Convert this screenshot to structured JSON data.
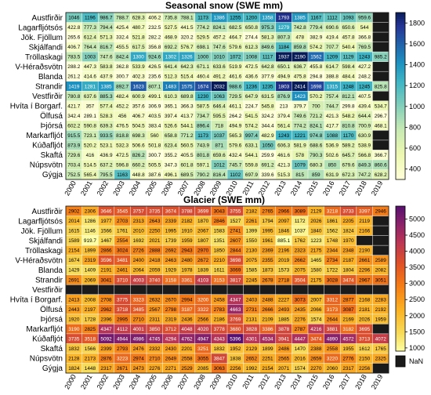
{
  "chart_data": [
    {
      "type": "heatmap",
      "title": "Seasonal snow (SWE mm)",
      "x": [
        "2000",
        "2001",
        "2002",
        "2003",
        "2004",
        "2005",
        "2006",
        "2007",
        "2008",
        "2009",
        "2010",
        "2011",
        "2012",
        "2013",
        "2014",
        "2015",
        "2016",
        "2017",
        "2018",
        "2019"
      ],
      "y": [
        "Austfirðir",
        "Lagarfljótsós",
        "Jök. Fjöllum",
        "Skjálfandi",
        "Tröllaskagi",
        "V-Héraðsvötn",
        "Blanda",
        "Strandir",
        "Vestfirðir",
        "Hvíta í Borgarf.",
        "Ölfusá",
        "Þjórsá",
        "Markarfljót",
        "Kúðafljót",
        "Skaftá",
        "Núpsvötn",
        "Gýgja"
      ],
      "values": [
        [
          1046,
          1196,
          986.7,
          788.7,
          628.3,
          406.2,
          735.8,
          788.1,
          1173,
          1386,
          1255,
          1200,
          1358,
          1793,
          1385,
          1167,
          1112,
          1093,
          959.6,
          null
        ],
        [
          422.8,
          777.3,
          794.4,
          425.4,
          480.7,
          232.5,
          527.5,
          441.5,
          774.2,
          824.1,
          682.5,
          650.8,
          975.3,
          1279,
          742.8,
          779.4,
          690.6,
          650.6,
          544,
          null
        ],
        [
          265.6,
          612.4,
          571.3,
          332.4,
          521.8,
          282.2,
          468.9,
          320.2,
          529.5,
          457.2,
          464.7,
          274.4,
          581.3,
          807.3,
          478,
          382.9,
          419.4,
          457.8,
          366.8,
          null
        ],
        [
          406.7,
          764.4,
          816.7,
          455.5,
          617.5,
          356.8,
          692.2,
          576.7,
          698.1,
          747.6,
          579.6,
          612.3,
          849.6,
          1184,
          859.8,
          574.2,
          707.7,
          540.4,
          769.5,
          null
        ],
        [
          783.5,
          1003,
          747.6,
          842.4,
          1300,
          924.6,
          1302,
          1326,
          1000,
          1010,
          1072,
          1008,
          1117,
          1937,
          2190,
          1562,
          1209,
          1129,
          1243,
          985.2
        ],
        [
          288.2,
          447.3,
          583.8,
          362.8,
          533.9,
          426.5,
          641.4,
          642.3,
          671.1,
          633.6,
          519.9,
          472.5,
          642.8,
          650.1,
          636.7,
          455.8,
          614.7,
          598.4,
          427.2,
          null
        ],
        [
          261.2,
          414.6,
          437.9,
          300.7,
          402.3,
          235.6,
          512.3,
          515.4,
          460.4,
          491.2,
          461.6,
          436.6,
          377.9,
          494.9,
          475.8,
          294.8,
          388.8,
          484.4,
          248.2,
          null
        ],
        [
          1419,
          1281,
          1385,
          892.7,
          1623,
          807.1,
          1483,
          1575,
          1674,
          2032,
          988.6,
          1236,
          1235,
          1803,
          2414,
          1698,
          1315,
          1248,
          1245,
          825.8
        ],
        [
          780.8,
          637.6,
          885.3,
          482.4,
          600.9,
          499.1,
          610.3,
          689.8,
          1230,
          1063,
          729.5,
          647.9,
          631.5,
          876.9,
          1423,
          570.2,
          757.4,
          812.1,
          407.5,
          null
        ],
        [
          421.7,
          357,
          577.4,
          452.2,
          357.6,
          306.9,
          365.1,
          366.3,
          587.5,
          646.4,
          461.1,
          224.7,
          545.8,
          213,
          379.7,
          700,
          744.7,
          299.8,
          439.4,
          534.7
        ],
        [
          342.4,
          289.1,
          528.3,
          456,
          406.7,
          403.5,
          397.4,
          413.7,
          734.7,
          595.5,
          264.2,
          541.5,
          324.2,
          379.4,
          749.6,
          721.2,
          421.3,
          548.2,
          644.4,
          296.7
        ],
        [
          602.2,
          590.8,
          639.3,
          476.5,
          504.5,
          383.4,
          526.6,
          544.1,
          896.4,
          718,
          494.9,
          574.2,
          344.4,
          561.4,
          774.2,
          824.1,
          417.7,
          810.8,
          700.9,
          468.1
        ],
        [
          915.5,
          723.1,
          933.5,
          818.8,
          698.3,
          560,
          658.8,
          771.2,
          1173,
          1037,
          565.3,
          997.4,
          482.9,
          1243,
          1221,
          974.8,
          1088,
          1170,
          630.9,
          null
        ],
        [
          873.9,
          520.2,
          523.1,
          532.3,
          506.6,
          501.8,
          623.4,
          560.5,
          743.9,
          871,
          579.6,
          633.1,
          1050,
          606.3,
          581.9,
          688.6,
          536.9,
          589.2,
          538.9,
          null
        ],
        [
          729.6,
          416,
          436.9,
          472.5,
          826.2,
          300.7,
          355.2,
          405.5,
          801.8,
          659.6,
          432.4,
          544.1,
          259.9,
          461.6,
          578,
          790.3,
          502.6,
          645.7,
          566.8,
          366.7
        ],
        [
          703.4,
          514.5,
          637.2,
          596.8,
          660.2,
          505.5,
          347.3,
          601.8,
          597.1,
          1012,
          745.7,
          559.8,
          691.2,
          421.3,
          1079,
          680.3,
          850,
          679.6,
          849.3,
          860.6
        ],
        [
          752.5,
          565.4,
          795.5,
          1163,
          448.8,
          387.6,
          496.1,
          689.5,
          790.2,
          816.4,
          1102,
          697.9,
          339.6,
          515.3,
          815,
          859,
          631.9,
          672.3,
          747.2,
          628.2
        ]
      ],
      "colorbar": {
        "ticks": [
          400,
          600,
          800,
          1000,
          1200,
          1400,
          1600,
          1800
        ],
        "range": [
          300,
          1900
        ],
        "colormap": "YlGnBu"
      }
    },
    {
      "type": "heatmap",
      "title": "Glacier (SWE mm)",
      "x": [
        "2000",
        "2001",
        "2002",
        "2003",
        "2004",
        "2005",
        "2006",
        "2007",
        "2008",
        "2009",
        "2010",
        "2011",
        "2012",
        "2013",
        "2014",
        "2015",
        "2016",
        "2017",
        "2018",
        "2019"
      ],
      "y": [
        "Austfirðir",
        "Lagarfljótsós",
        "Jök. Fjöllum",
        "Skjálfandi",
        "Tröllaskagi",
        "V-Héraðsvötn",
        "Blanda",
        "Strandir",
        "Vestfirðir",
        "Hvíta í Borgarf.",
        "Ölfusá",
        "Þjórsá",
        "Markarfljót",
        "Kúðafljót",
        "Skaftá",
        "Núpsvötn",
        "Gýgja"
      ],
      "values": [
        [
          2902,
          2306,
          3646,
          3545,
          3757,
          3735,
          3674,
          3788,
          3699,
          3043,
          3755,
          2182,
          2765,
          2966,
          3089,
          2129,
          3218,
          3733,
          3397,
          2946
        ],
        [
          2014,
          1286,
          1977,
          2703,
          2313,
          2643,
          2339,
          2182,
          1870,
          2846,
          1527,
          2261,
          1794,
          2097,
          1172,
          2026,
          1861,
          2205,
          2119,
          null
        ],
        [
          1615,
          1146,
          1566,
          1761,
          2010,
          2250,
          1995,
          1910,
          2067,
          1583,
          2741,
          1399,
          1995,
          1846,
          1037,
          1840,
          1562,
          1824,
          2166,
          null
        ],
        [
          1589,
          919.7,
          1467,
          2554,
          1692,
          2021,
          1739,
          1959,
          1807,
          1351,
          2607,
          1550,
          1961,
          885.1,
          1762,
          1223,
          1748,
          1970,
          null,
          null
        ],
        [
          2154,
          1899,
          2866,
          3024,
          2726,
          2888,
          2692,
          2943,
          2970,
          1850,
          2844,
          2130,
          2369,
          2196,
          2323,
          2175,
          2344,
          2348,
          2190,
          null
        ],
        [
          1674,
          2319,
          3596,
          3481,
          2400,
          2418,
          2463,
          2480,
          2672,
          2210,
          3698,
          2075,
          2355,
          2019,
          2662,
          1465,
          2734,
          2187,
          2661,
          2589
        ],
        [
          1429,
          1409,
          2191,
          2461,
          2064,
          2059,
          1929,
          1978,
          1839,
          1611,
          3069,
          1585,
          1873,
          1573,
          2075,
          1580,
          1722,
          1804,
          2296,
          2082
        ],
        [
          2691,
          2069,
          3041,
          3710,
          4003,
          3740,
          3158,
          3361,
          4103,
          3153,
          3817,
          2245,
          2678,
          2718,
          3504,
          2175,
          3028,
          3474,
          2967,
          3051
        ],
        [
          null,
          null,
          null,
          null,
          null,
          null,
          null,
          null,
          null,
          null,
          null,
          null,
          null,
          null,
          null,
          null,
          null,
          null,
          null,
          null
        ],
        [
          2413,
          2008,
          2708,
          3775,
          3323,
          2632,
          2670,
          2994,
          3200,
          2458,
          4347,
          2403,
          2488,
          2227,
          3073,
          2007,
          3312,
          2877,
          2168,
          2283
        ],
        [
          2443,
          2197,
          2962,
          3718,
          3485,
          2567,
          2798,
          3187,
          3322,
          2783,
          4663,
          2731,
          2666,
          2493,
          2435,
          2066,
          3173,
          3087,
          2181,
          2192
        ],
        [
          1920,
          1728,
          2396,
          2995,
          2710,
          2311,
          2319,
          2436,
          2566,
          2186,
          3769,
          2131,
          2109,
          1885,
          2276,
          1574,
          2644,
          2169,
          2026,
          1959
        ],
        [
          3190,
          2825,
          4347,
          4112,
          4001,
          3850,
          3712,
          4048,
          4020,
          3778,
          3680,
          3828,
          3386,
          3878,
          2787,
          4216,
          3881,
          3182,
          3695,
          null
        ],
        [
          3735,
          3518,
          5092,
          4944,
          4986,
          4745,
          4294,
          4762,
          4947,
          4343,
          5396,
          4301,
          4534,
          3941,
          4447,
          3474,
          4890,
          4572,
          3713,
          4072
        ],
        [
          1832,
          1566,
          2399,
          2793,
          2476,
          2332,
          2430,
          2201,
          3251,
          1832,
          1952,
          2129,
          1899,
          2486,
          1470,
          2388,
          2558,
          1955,
          1612,
          1765
        ],
        [
          2128,
          2173,
          2876,
          3223,
          2974,
          2710,
          2649,
          2558,
          3055,
          3847,
          1838,
          2652,
          2251,
          2565,
          2016,
          2659,
          3220,
          2776,
          2150,
          2325
        ],
        [
          1824,
          1448,
          2317,
          2671,
          2473,
          2276,
          2271,
          2529,
          2085,
          3063,
          2256,
          1992,
          2154,
          2071,
          1574,
          2270,
          2060,
          2317,
          2256,
          null
        ]
      ],
      "colorbar": {
        "ticks": [
          1000,
          1500,
          2000,
          2500,
          3000,
          3500,
          4000,
          4500,
          5000
        ],
        "range": [
          900,
          5400
        ],
        "colormap": "YlOrRd_inferno",
        "nan_label": "NaN"
      }
    }
  ]
}
